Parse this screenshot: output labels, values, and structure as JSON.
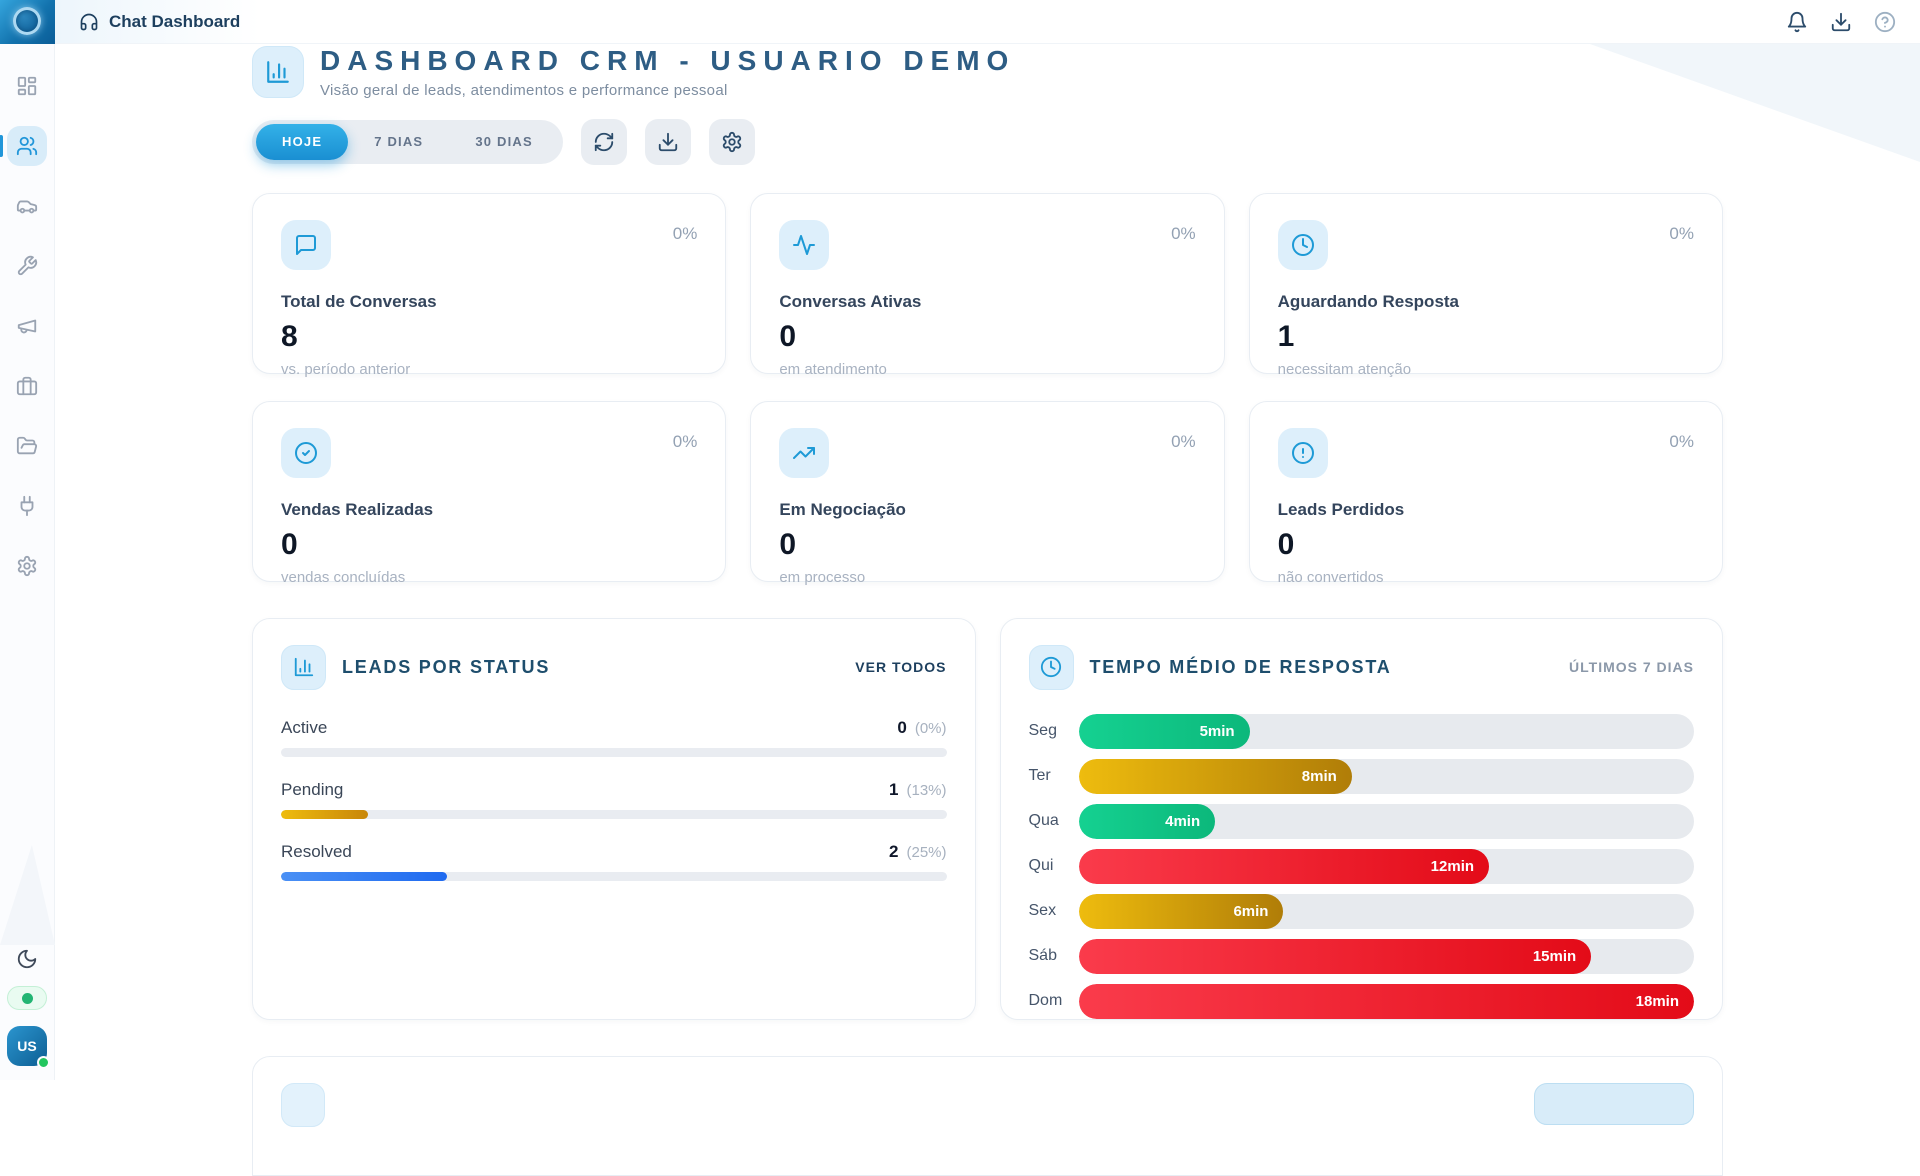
{
  "topbar": {
    "app_title": "Chat Dashboard",
    "icons": [
      "headphones-icon",
      "bell-icon",
      "download-icon",
      "help-icon"
    ]
  },
  "sidebar": {
    "items": [
      {
        "name": "dashboard",
        "icon": "layout-grid-icon",
        "active": false
      },
      {
        "name": "contacts",
        "icon": "users-icon",
        "active": true
      },
      {
        "name": "vehicles",
        "icon": "car-icon",
        "active": false
      },
      {
        "name": "tools",
        "icon": "wrench-icon",
        "active": false
      },
      {
        "name": "campaigns",
        "icon": "megaphone-icon",
        "active": false
      },
      {
        "name": "business",
        "icon": "briefcase-icon",
        "active": false
      },
      {
        "name": "files",
        "icon": "folder-open-icon",
        "active": false
      },
      {
        "name": "integrations",
        "icon": "plug-icon",
        "active": false
      },
      {
        "name": "settings",
        "icon": "gear-icon",
        "active": false
      }
    ],
    "theme_toggle_icon": "moon-icon",
    "status_online_color": "#22b573",
    "avatar_initials": "US"
  },
  "header": {
    "title": "DASHBOARD CRM - USUARIO DEMO",
    "subtitle": "Visão geral de leads, atendimentos e performance pessoal"
  },
  "toolbar": {
    "periods": [
      {
        "label": "HOJE",
        "active": true
      },
      {
        "label": "7 DIAS",
        "active": false
      },
      {
        "label": "30 DIAS",
        "active": false
      }
    ],
    "actions": [
      "refresh-icon",
      "download-icon",
      "gear-icon"
    ]
  },
  "stat_cards": [
    {
      "icon": "message-square-icon",
      "label": "Total de Conversas",
      "value": "8",
      "note": "vs. período anterior",
      "badge": "0%"
    },
    {
      "icon": "activity-icon",
      "label": "Conversas Ativas",
      "value": "0",
      "note": "em atendimento",
      "badge": "0%"
    },
    {
      "icon": "clock-icon",
      "label": "Aguardando Resposta",
      "value": "1",
      "note": "necessitam atenção",
      "badge": "0%"
    },
    {
      "icon": "check-circle-icon",
      "label": "Vendas Realizadas",
      "value": "0",
      "note": "vendas concluídas",
      "badge": "0%"
    },
    {
      "icon": "trending-up-icon",
      "label": "Em Negociação",
      "value": "0",
      "note": "em processo",
      "badge": "0%"
    },
    {
      "icon": "alert-circle-icon",
      "label": "Leads Perdidos",
      "value": "0",
      "note": "não convertidos",
      "badge": "0%"
    }
  ],
  "leads_panel": {
    "icon": "bar-chart-icon",
    "title": "LEADS POR STATUS",
    "action_label": "VER TODOS",
    "rows": [
      {
        "label": "Active",
        "count": "0",
        "percent_label": "(0%)",
        "fill": 0,
        "color": "blue"
      },
      {
        "label": "Pending",
        "count": "1",
        "percent_label": "(13%)",
        "fill": 13,
        "color": "gold"
      },
      {
        "label": "Resolved",
        "count": "2",
        "percent_label": "(25%)",
        "fill": 25,
        "color": "blue"
      }
    ]
  },
  "response_panel": {
    "icon": "clock-icon",
    "title": "TEMPO MÉDIO DE RESPOSTA",
    "badge": "ÚLTIMOS 7 DIAS",
    "max_minutes": 18,
    "rows": [
      {
        "day": "Seg",
        "value_label": "5min",
        "minutes": 5,
        "fill": 27.8,
        "color": "green"
      },
      {
        "day": "Ter",
        "value_label": "8min",
        "minutes": 8,
        "fill": 44.4,
        "color": "amber"
      },
      {
        "day": "Qua",
        "value_label": "4min",
        "minutes": 4,
        "fill": 22.2,
        "color": "green"
      },
      {
        "day": "Qui",
        "value_label": "12min",
        "minutes": 12,
        "fill": 66.7,
        "color": "red"
      },
      {
        "day": "Sex",
        "value_label": "6min",
        "minutes": 6,
        "fill": 33.3,
        "color": "amber"
      },
      {
        "day": "Sáb",
        "value_label": "15min",
        "minutes": 15,
        "fill": 83.3,
        "color": "red"
      },
      {
        "day": "Dom",
        "value_label": "18min",
        "minutes": 18,
        "fill": 100,
        "color": "red"
      }
    ]
  },
  "colors": {
    "accent_blue": "#2196d9",
    "tile_blue_bg": "#ddeffb",
    "navy_text": "#1e4e6d",
    "green": "#10b981",
    "amber": "#d79a06",
    "red": "#e51525",
    "track_gray": "#e7eaee"
  },
  "chart_data": [
    {
      "type": "bar",
      "title": "LEADS POR STATUS",
      "categories": [
        "Active",
        "Pending",
        "Resolved"
      ],
      "values": [
        0,
        1,
        2
      ],
      "percentages": [
        0,
        13,
        25
      ],
      "xlabel": "",
      "ylabel": "",
      "legend": false
    },
    {
      "type": "bar",
      "title": "TEMPO MÉDIO DE RESPOSTA",
      "subtitle": "ÚLTIMOS 7 DIAS",
      "categories": [
        "Seg",
        "Ter",
        "Qua",
        "Qui",
        "Sex",
        "Sáb",
        "Dom"
      ],
      "values": [
        5,
        8,
        4,
        12,
        6,
        15,
        18
      ],
      "unit": "min",
      "xlim": [
        0,
        18
      ],
      "legend": false
    }
  ]
}
